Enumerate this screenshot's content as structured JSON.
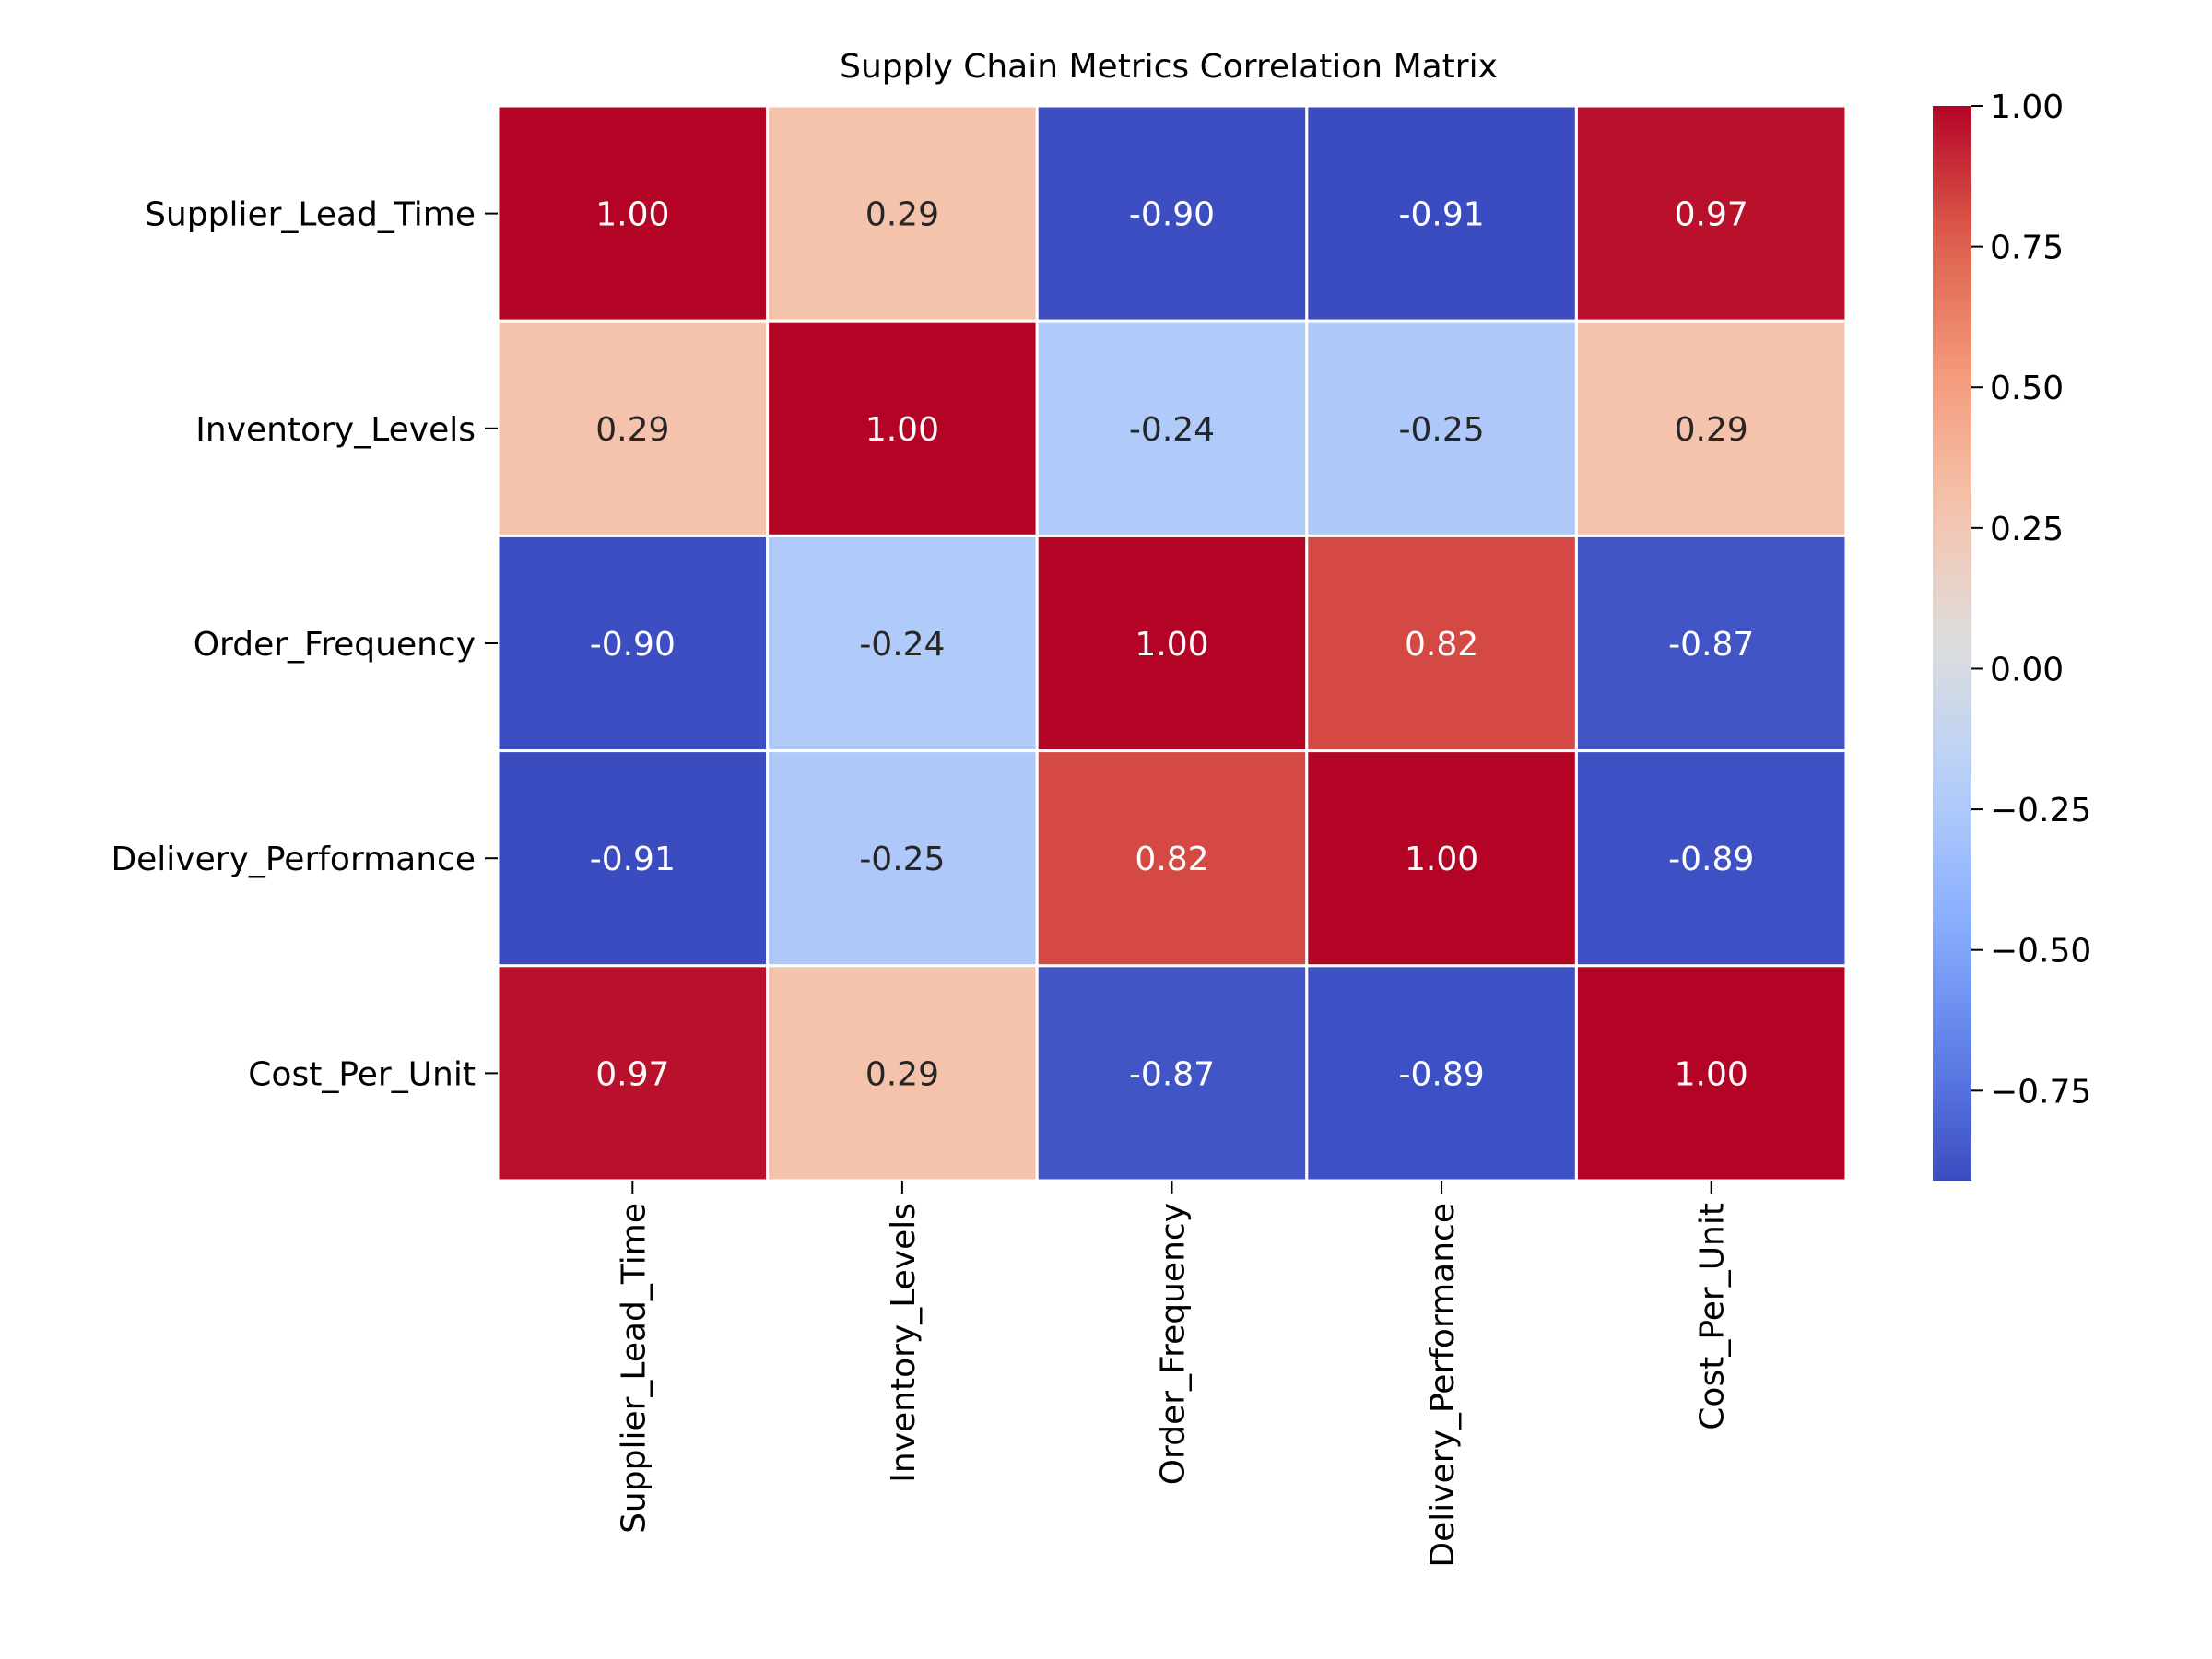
{
  "chart_data": {
    "type": "heatmap",
    "title": "Supply Chain Metrics Correlation Matrix",
    "row_labels": [
      "Supplier_Lead_Time",
      "Inventory_Levels",
      "Order_Frequency",
      "Delivery_Performance",
      "Cost_Per_Unit"
    ],
    "col_labels": [
      "Supplier_Lead_Time",
      "Inventory_Levels",
      "Order_Frequency",
      "Delivery_Performance",
      "Cost_Per_Unit"
    ],
    "values": [
      [
        1.0,
        0.29,
        -0.9,
        -0.91,
        0.97
      ],
      [
        0.29,
        1.0,
        -0.24,
        -0.25,
        0.29
      ],
      [
        -0.9,
        -0.24,
        1.0,
        0.82,
        -0.87
      ],
      [
        -0.91,
        -0.25,
        0.82,
        1.0,
        -0.89
      ],
      [
        0.97,
        0.29,
        -0.87,
        -0.89,
        1.0
      ]
    ],
    "cell_labels": [
      [
        "1.00",
        "0.29",
        "-0.90",
        "-0.91",
        "0.97"
      ],
      [
        "0.29",
        "1.00",
        "-0.24",
        "-0.25",
        "0.29"
      ],
      [
        "-0.90",
        "-0.24",
        "1.00",
        "0.82",
        "-0.87"
      ],
      [
        "-0.91",
        "-0.25",
        "0.82",
        "1.00",
        "-0.89"
      ],
      [
        "0.97",
        "0.29",
        "-0.87",
        "-0.89",
        "1.00"
      ]
    ],
    "colormap": "coolwarm",
    "colorbar": {
      "min": -0.91,
      "max": 1.0,
      "ticks": [
        1.0,
        0.75,
        0.5,
        0.25,
        0.0,
        -0.25,
        -0.5,
        -0.75
      ],
      "tick_labels": [
        "1.00",
        "0.75",
        "0.50",
        "0.25",
        "0.00",
        "−0.25",
        "−0.50",
        "−0.75"
      ],
      "position": "right"
    },
    "grid": true,
    "cell_border_color": "#ffffff",
    "xlabel": "",
    "ylabel": ""
  }
}
